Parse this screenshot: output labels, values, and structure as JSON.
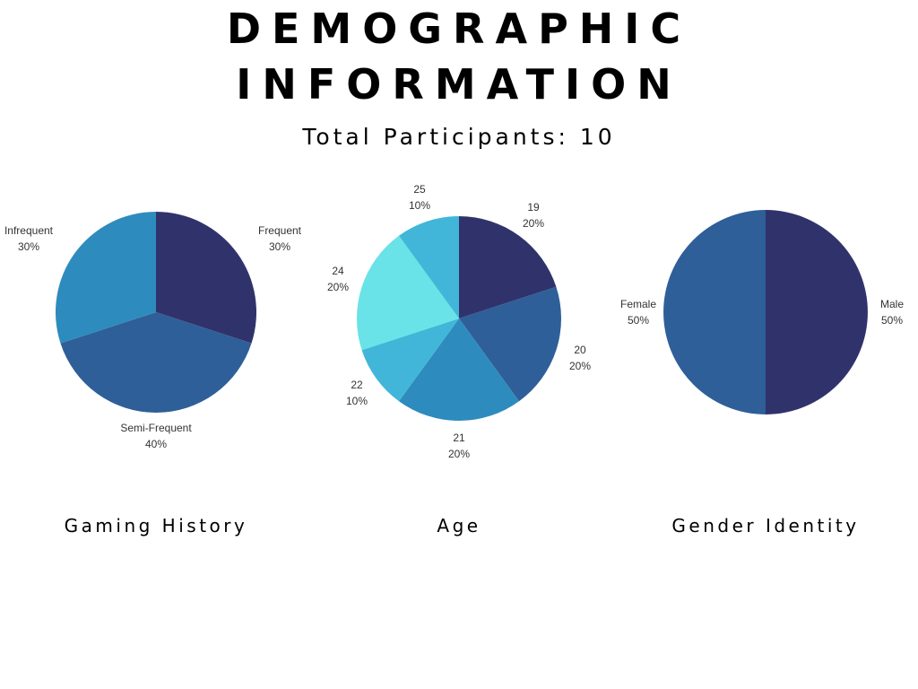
{
  "header": {
    "title_line_1": "DEMOGRAPHIC",
    "title_line_2": "INFORMATION",
    "subtitle": "Total Participants: 10"
  },
  "chart_data": [
    {
      "type": "pie",
      "title": "Gaming History",
      "slices": [
        {
          "label": "Frequent",
          "value": 30,
          "color": "#30336b"
        },
        {
          "label": "Semi-Frequent",
          "value": 40,
          "color": "#2e5f99"
        },
        {
          "label": "Infrequent",
          "value": 30,
          "color": "#2e8bbd"
        }
      ]
    },
    {
      "type": "pie",
      "title": "Age",
      "slices": [
        {
          "label": "19",
          "value": 20,
          "color": "#30336b"
        },
        {
          "label": "20",
          "value": 20,
          "color": "#2e5f99"
        },
        {
          "label": "21",
          "value": 20,
          "color": "#2e8bbd"
        },
        {
          "label": "22",
          "value": 10,
          "color": "#41b6d8"
        },
        {
          "label": "24",
          "value": 20,
          "color": "#69e3e7"
        },
        {
          "label": "25",
          "value": 10,
          "color": "#41b6d8"
        }
      ]
    },
    {
      "type": "pie",
      "title": "Gender Identity",
      "slices": [
        {
          "label": "Male",
          "value": 50,
          "color": "#30336b"
        },
        {
          "label": "Female",
          "value": 50,
          "color": "#2e5f99"
        }
      ]
    }
  ]
}
